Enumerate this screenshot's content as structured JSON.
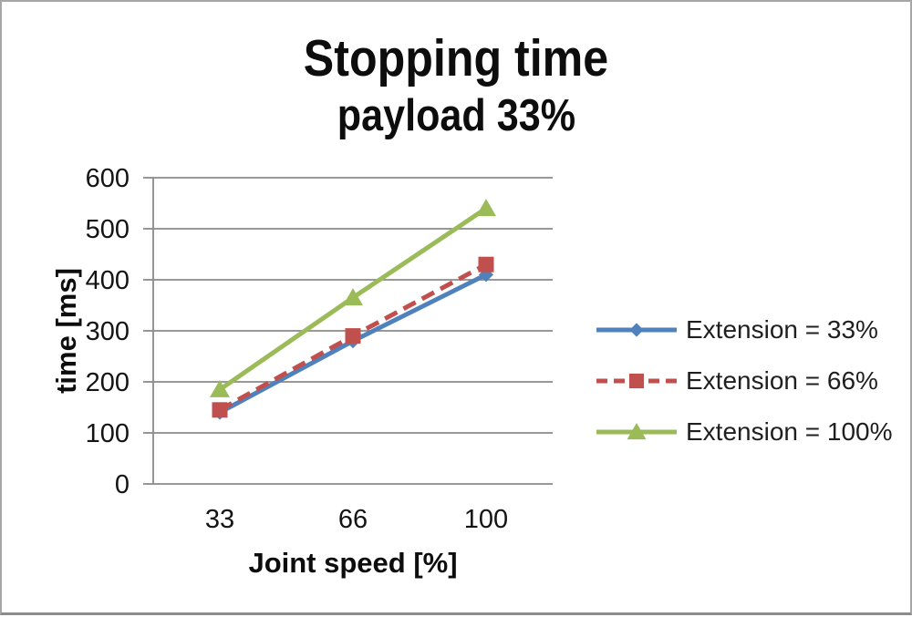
{
  "page": {
    "background": "#ffffff",
    "border_color": "#a6a6a6"
  },
  "chart": {
    "title": "Stopping time",
    "subtitle": "payload 33%"
  },
  "chart_data": {
    "type": "line",
    "title": "Stopping time",
    "subtitle": "payload 33%",
    "categories": [
      "33",
      "66",
      "100"
    ],
    "series": [
      {
        "name": "Extension = 33%",
        "values": [
          140,
          280,
          410
        ],
        "color": "#4f81bd",
        "marker": "diamond",
        "line_style": "solid"
      },
      {
        "name": "Extension = 66%",
        "values": [
          145,
          290,
          430
        ],
        "color": "#c0504d",
        "marker": "square",
        "line_style": "dashed"
      },
      {
        "name": "Extension = 100%",
        "values": [
          185,
          365,
          540
        ],
        "color": "#9bbb59",
        "marker": "triangle",
        "line_style": "solid"
      }
    ],
    "xlabel": "Joint speed [%]",
    "ylabel": "time [ms]",
    "ylim": [
      0,
      600
    ],
    "ytick_step": 100,
    "grid": true,
    "gridline_color": "#8a8a8a",
    "tick_label_color": "#141414",
    "legend_position": "right"
  }
}
